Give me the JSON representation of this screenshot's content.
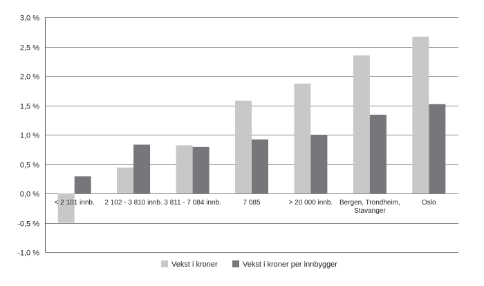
{
  "chart_data": {
    "type": "bar",
    "title": "",
    "xlabel": "",
    "ylabel": "",
    "ylim": [
      -1.0,
      3.0
    ],
    "ytick_step": 0.5,
    "y_tick_labels": [
      "-1,0 %",
      "-0,5 %",
      "0,0 %",
      "0,5 %",
      "1,0 %",
      "1,5 %",
      "2,0 %",
      "2,5 %",
      "3,0 %"
    ],
    "grid": true,
    "legend_position": "bottom",
    "categories": [
      [
        "< 2 101 innb."
      ],
      [
        "2 102 - 3 810 innb."
      ],
      [
        "3 811 - 7 084 innb."
      ],
      [
        "7 085"
      ],
      [
        "> 20 000 innb."
      ],
      [
        "Bergen, Trondheim,",
        "Stavanger"
      ],
      [
        "Oslo"
      ]
    ],
    "series": [
      {
        "name": "Vekst i kroner",
        "color": "#c8c8c8",
        "values": [
          -0.5,
          0.44,
          0.82,
          1.58,
          1.87,
          2.35,
          2.67
        ]
      },
      {
        "name": "Vekst i kroner per innbygger",
        "color": "#77777b",
        "values": [
          0.29,
          0.83,
          0.79,
          0.92,
          1.0,
          1.34,
          1.52
        ]
      }
    ]
  }
}
